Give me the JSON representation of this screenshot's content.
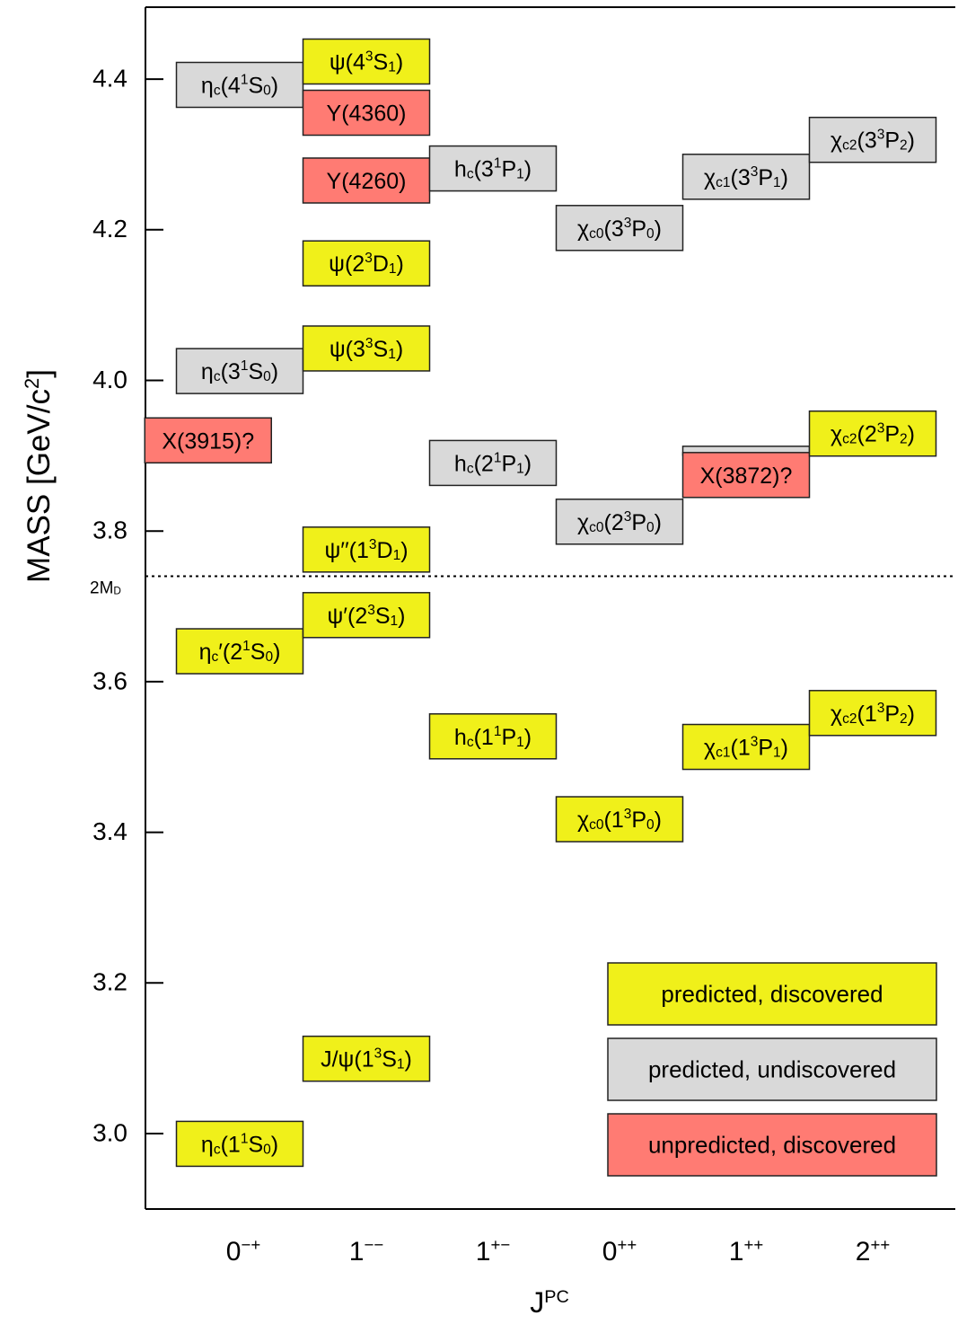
{
  "chart_data": {
    "type": "level-diagram",
    "xlabel": "J",
    "xlabel_sup": "PC",
    "ylabel": "MASS",
    "ylabel_unit": "[GeV/c",
    "ylabel_unit_sup": "2",
    "ylabel_unit_end": "]",
    "ylim": [
      2.92,
      4.5
    ],
    "yticks": [
      {
        "value": 3.0,
        "label": "3.0"
      },
      {
        "value": 3.2,
        "label": "3.2"
      },
      {
        "value": 3.4,
        "label": "3.4"
      },
      {
        "value": 3.6,
        "label": "3.6"
      },
      {
        "value": 3.8,
        "label": "3.8"
      },
      {
        "value": 4.0,
        "label": "4.0"
      },
      {
        "value": 4.2,
        "label": "4.2"
      },
      {
        "value": 4.4,
        "label": "4.4"
      }
    ],
    "columns": [
      {
        "label": "0",
        "sup": "−+"
      },
      {
        "label": "1",
        "sup": "−−"
      },
      {
        "label": "1",
        "sup": "+−"
      },
      {
        "label": "0",
        "sup": "++"
      },
      {
        "label": "1",
        "sup": "++"
      },
      {
        "label": "2",
        "sup": "++"
      }
    ],
    "threshold": {
      "mass": 3.74,
      "label": "2M",
      "label_sub": "D"
    },
    "legend": [
      {
        "label": "predicted, discovered",
        "status": "predicted-discovered"
      },
      {
        "label": "predicted, undiscovered",
        "status": "predicted-undiscovered"
      },
      {
        "label": "unpredicted, discovered",
        "status": "unpredicted-discovered"
      }
    ],
    "colors": {
      "predicted-discovered": "#f0f01a",
      "predicted-undiscovered": "#d9d9d9",
      "unpredicted-discovered": "#ff7b73",
      "axis": "#000000"
    },
    "states": [
      {
        "id": "etac-1S",
        "column": 0,
        "mass": 2.984,
        "status": "predicted-discovered",
        "label": [
          [
            "η",
            ""
          ],
          [
            "c",
            "sub"
          ],
          [
            "(1",
            ""
          ],
          [
            "1",
            "sup"
          ],
          [
            "S",
            ""
          ],
          [
            "0",
            "sub"
          ],
          [
            ")",
            ""
          ]
        ]
      },
      {
        "id": "etacp-2S",
        "column": 0,
        "mass": 3.638,
        "status": "predicted-discovered",
        "label": [
          [
            "η",
            ""
          ],
          [
            "c",
            "sub"
          ],
          [
            "′(2",
            ""
          ],
          [
            "1",
            "sup"
          ],
          [
            "S",
            ""
          ],
          [
            "0",
            "sub"
          ],
          [
            ")",
            ""
          ]
        ]
      },
      {
        "id": "etac-3S",
        "column": 0,
        "mass": 4.01,
        "status": "predicted-undiscovered",
        "label": [
          [
            "η",
            ""
          ],
          [
            "c",
            "sub"
          ],
          [
            "(3",
            ""
          ],
          [
            "1",
            "sup"
          ],
          [
            "S",
            ""
          ],
          [
            "0",
            "sub"
          ],
          [
            ")",
            ""
          ]
        ]
      },
      {
        "id": "etac-4S",
        "column": 0,
        "mass": 4.39,
        "status": "predicted-undiscovered",
        "label": [
          [
            "η",
            ""
          ],
          [
            "c",
            "sub"
          ],
          [
            "(4",
            ""
          ],
          [
            "1",
            "sup"
          ],
          [
            "S",
            ""
          ],
          [
            "0",
            "sub"
          ],
          [
            ")",
            ""
          ]
        ]
      },
      {
        "id": "X3915",
        "column": -0.25,
        "mass": 3.918,
        "status": "unpredicted-discovered",
        "label": [
          [
            "X(3915)?",
            ""
          ]
        ]
      },
      {
        "id": "jpsi-1S",
        "column": 1,
        "mass": 3.097,
        "status": "predicted-discovered",
        "label": [
          [
            "J/ψ(1",
            ""
          ],
          [
            "3",
            "sup"
          ],
          [
            "S",
            ""
          ],
          [
            "1",
            "sub"
          ],
          [
            ")",
            ""
          ]
        ]
      },
      {
        "id": "psip-2S",
        "column": 1,
        "mass": 3.686,
        "status": "predicted-discovered",
        "label": [
          [
            "ψ′(2",
            ""
          ],
          [
            "3",
            "sup"
          ],
          [
            "S",
            ""
          ],
          [
            "1",
            "sub"
          ],
          [
            ")",
            ""
          ]
        ]
      },
      {
        "id": "psipp-1D",
        "column": 1,
        "mass": 3.773,
        "status": "predicted-discovered",
        "label": [
          [
            "ψ′′(1",
            ""
          ],
          [
            "3",
            "sup"
          ],
          [
            "D",
            ""
          ],
          [
            "1",
            "sub"
          ],
          [
            ")",
            ""
          ]
        ]
      },
      {
        "id": "psi-3S",
        "column": 1,
        "mass": 4.04,
        "status": "predicted-discovered",
        "label": [
          [
            "ψ(3",
            ""
          ],
          [
            "3",
            "sup"
          ],
          [
            "S",
            ""
          ],
          [
            "1",
            "sub"
          ],
          [
            ")",
            ""
          ]
        ]
      },
      {
        "id": "psi-2D",
        "column": 1,
        "mass": 4.153,
        "status": "predicted-discovered",
        "label": [
          [
            "ψ(2",
            ""
          ],
          [
            "3",
            "sup"
          ],
          [
            "D",
            ""
          ],
          [
            "1",
            "sub"
          ],
          [
            ")",
            ""
          ]
        ]
      },
      {
        "id": "Y4260",
        "column": 1,
        "mass": 4.263,
        "status": "unpredicted-discovered",
        "label": [
          [
            "Y(4260)",
            ""
          ]
        ]
      },
      {
        "id": "Y4360",
        "column": 1,
        "mass": 4.353,
        "status": "unpredicted-discovered",
        "label": [
          [
            "Y(4360)",
            ""
          ]
        ]
      },
      {
        "id": "psi-4S",
        "column": 1,
        "mass": 4.421,
        "status": "predicted-discovered",
        "label": [
          [
            "ψ(4",
            ""
          ],
          [
            "3",
            "sup"
          ],
          [
            "S",
            ""
          ],
          [
            "1",
            "sub"
          ],
          [
            ")",
            ""
          ]
        ]
      },
      {
        "id": "hc-1P",
        "column": 2,
        "mass": 3.525,
        "status": "predicted-discovered",
        "label": [
          [
            "h",
            ""
          ],
          [
            "c",
            "sub"
          ],
          [
            "(1",
            ""
          ],
          [
            "1",
            "sup"
          ],
          [
            "P",
            ""
          ],
          [
            "1",
            "sub"
          ],
          [
            ")",
            ""
          ]
        ]
      },
      {
        "id": "hc-2P",
        "column": 2,
        "mass": 3.888,
        "status": "predicted-undiscovered",
        "label": [
          [
            "h",
            ""
          ],
          [
            "c",
            "sub"
          ],
          [
            "(2",
            ""
          ],
          [
            "1",
            "sup"
          ],
          [
            "P",
            ""
          ],
          [
            "1",
            "sub"
          ],
          [
            ")",
            ""
          ]
        ]
      },
      {
        "id": "hc-3P",
        "column": 2,
        "mass": 4.279,
        "status": "predicted-undiscovered",
        "label": [
          [
            "h",
            ""
          ],
          [
            "c",
            "sub"
          ],
          [
            "(3",
            ""
          ],
          [
            "1",
            "sup"
          ],
          [
            "P",
            ""
          ],
          [
            "1",
            "sub"
          ],
          [
            ")",
            ""
          ]
        ]
      },
      {
        "id": "chic0-1P",
        "column": 3,
        "mass": 3.415,
        "status": "predicted-discovered",
        "label": [
          [
            "χ",
            ""
          ],
          [
            "c0",
            "sub"
          ],
          [
            "(1",
            ""
          ],
          [
            "3",
            "sup"
          ],
          [
            "P",
            ""
          ],
          [
            "0",
            "sub"
          ],
          [
            ")",
            ""
          ]
        ]
      },
      {
        "id": "chic0-2P",
        "column": 3,
        "mass": 3.81,
        "status": "predicted-undiscovered",
        "label": [
          [
            "χ",
            ""
          ],
          [
            "c0",
            "sub"
          ],
          [
            "(2",
            ""
          ],
          [
            "3",
            "sup"
          ],
          [
            "P",
            ""
          ],
          [
            "0",
            "sub"
          ],
          [
            ")",
            ""
          ]
        ]
      },
      {
        "id": "chic0-3P",
        "column": 3,
        "mass": 4.2,
        "status": "predicted-undiscovered",
        "label": [
          [
            "χ",
            ""
          ],
          [
            "c0",
            "sub"
          ],
          [
            "(3",
            ""
          ],
          [
            "3",
            "sup"
          ],
          [
            "P",
            ""
          ],
          [
            "0",
            "sub"
          ],
          [
            ")",
            ""
          ]
        ]
      },
      {
        "id": "chic1-1P",
        "column": 4,
        "mass": 3.511,
        "status": "predicted-discovered",
        "label": [
          [
            "χ",
            ""
          ],
          [
            "c1",
            "sub"
          ],
          [
            "(1",
            ""
          ],
          [
            "3",
            "sup"
          ],
          [
            "P",
            ""
          ],
          [
            "1",
            "sub"
          ],
          [
            ")",
            ""
          ]
        ]
      },
      {
        "id": "chic1-2P",
        "column": 4,
        "mass": 3.903,
        "status": "predicted-undiscovered",
        "label": []
      },
      {
        "id": "X3872",
        "column": 4,
        "mass": 3.872,
        "status": "unpredicted-discovered",
        "label": [
          [
            "X(3872)?",
            ""
          ]
        ]
      },
      {
        "id": "chic1-3P",
        "column": 4,
        "mass": 4.268,
        "status": "predicted-undiscovered",
        "label": [
          [
            "χ",
            ""
          ],
          [
            "c1",
            "sub"
          ],
          [
            "(3",
            ""
          ],
          [
            "3",
            "sup"
          ],
          [
            "P",
            ""
          ],
          [
            "1",
            "sub"
          ],
          [
            ")",
            ""
          ]
        ]
      },
      {
        "id": "chic2-1P",
        "column": 5,
        "mass": 3.556,
        "status": "predicted-discovered",
        "label": [
          [
            "χ",
            ""
          ],
          [
            "c2",
            "sub"
          ],
          [
            "(1",
            ""
          ],
          [
            "3",
            "sup"
          ],
          [
            "P",
            ""
          ],
          [
            "2",
            "sub"
          ],
          [
            ")",
            ""
          ]
        ]
      },
      {
        "id": "chic2-2P",
        "column": 5,
        "mass": 3.927,
        "status": "predicted-discovered",
        "label": [
          [
            "χ",
            ""
          ],
          [
            "c2",
            "sub"
          ],
          [
            "(2",
            ""
          ],
          [
            "3",
            "sup"
          ],
          [
            "P",
            ""
          ],
          [
            "2",
            "sub"
          ],
          [
            ")",
            ""
          ]
        ]
      },
      {
        "id": "chic2-3P",
        "column": 5,
        "mass": 4.317,
        "status": "predicted-undiscovered",
        "label": [
          [
            "χ",
            ""
          ],
          [
            "c2",
            "sub"
          ],
          [
            "(3",
            ""
          ],
          [
            "3",
            "sup"
          ],
          [
            "P",
            ""
          ],
          [
            "2",
            "sub"
          ],
          [
            ")",
            ""
          ]
        ]
      }
    ]
  }
}
